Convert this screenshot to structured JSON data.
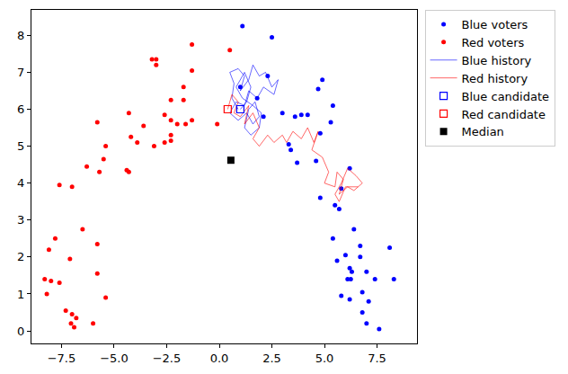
{
  "chart_data": {
    "type": "scatter",
    "grid": false,
    "legend": "right",
    "xlim": [
      -8.93,
      9.4
    ],
    "ylim": [
      -0.34,
      8.69
    ],
    "xticks": [
      {
        "value": -7.5,
        "label": "−7.5"
      },
      {
        "value": -5.0,
        "label": "−5.0"
      },
      {
        "value": -2.5,
        "label": "−2.5"
      },
      {
        "value": 0.0,
        "label": "0.0"
      },
      {
        "value": 2.5,
        "label": "2.5"
      },
      {
        "value": 5.0,
        "label": "5.0"
      },
      {
        "value": 7.5,
        "label": "7.5"
      }
    ],
    "yticks": [
      0,
      1,
      2,
      3,
      4,
      5,
      6,
      7,
      8
    ],
    "series": [
      {
        "name": "Blue voters",
        "type": "scatter",
        "marker": "circle",
        "color": "#0000ff",
        "x": [
          1.1,
          2.5,
          2.3,
          4.7,
          4.9,
          5.3,
          5.4,
          3.0,
          3.6,
          3.9,
          4.2,
          4.8,
          3.3,
          3.4,
          3.7,
          4.6,
          6.2,
          4.8,
          5.5,
          5.7,
          5.8,
          6.4,
          5.4,
          6.7,
          6.0,
          6.7,
          8.1,
          5.6,
          6.2,
          6.3,
          7.0,
          8.3,
          6.1,
          6.25,
          7.4,
          6.8,
          5.8,
          6.2,
          7.1,
          6.8,
          7.0,
          7.6,
          1.0,
          1.8,
          2.1
        ],
        "y": [
          8.25,
          7.95,
          6.9,
          6.55,
          6.8,
          5.65,
          6.1,
          5.9,
          5.8,
          5.85,
          5.85,
          5.35,
          5.05,
          4.9,
          4.55,
          4.6,
          4.4,
          3.6,
          3.4,
          3.3,
          3.85,
          2.75,
          2.5,
          2.3,
          2.05,
          2.0,
          2.25,
          1.9,
          1.7,
          1.6,
          1.6,
          1.4,
          1.4,
          1.4,
          1.4,
          1.05,
          0.95,
          0.85,
          0.8,
          0.5,
          0.2,
          0.05,
          6.6,
          6.3,
          5.8
        ]
      },
      {
        "name": "Red voters",
        "type": "scatter",
        "marker": "circle",
        "color": "#ff0000",
        "x": [
          -3.2,
          -3.0,
          -3.0,
          -1.3,
          -1.3,
          -1.7,
          -2.3,
          -1.7,
          -2.6,
          -4.3,
          -2.3,
          -2.0,
          -1.6,
          -1.3,
          -5.8,
          -3.6,
          -4.2,
          -2.3,
          -2.3,
          -3.9,
          -2.6,
          -3.1,
          -5.4,
          -5.5,
          -4.4,
          -4.3,
          -5.7,
          -6.3,
          -7.6,
          -7.0,
          -6.5,
          -7.8,
          -8.1,
          -7.1,
          -5.8,
          -5.8,
          -8.3,
          -8.0,
          -7.6,
          -8.2,
          -5.4,
          -7.3,
          -7.0,
          -6.8,
          -7.05,
          -6.9,
          -6.0,
          -0.1,
          0.5
        ],
        "y": [
          7.35,
          7.35,
          7.2,
          7.75,
          7.05,
          6.6,
          6.25,
          6.25,
          5.85,
          5.9,
          5.7,
          5.6,
          5.6,
          5.7,
          5.65,
          5.55,
          5.25,
          5.3,
          5.15,
          5.1,
          5.1,
          5.0,
          5.0,
          4.65,
          4.35,
          4.3,
          4.3,
          4.45,
          3.95,
          3.9,
          2.75,
          2.5,
          2.2,
          1.95,
          2.35,
          1.55,
          1.4,
          1.35,
          1.3,
          1.0,
          0.9,
          0.55,
          0.45,
          0.35,
          0.2,
          0.1,
          0.2,
          5.6,
          7.6
        ]
      },
      {
        "name": "Blue history",
        "type": "line",
        "line_style": "solid",
        "color": "#0000ff",
        "x": [
          0.9,
          0.6,
          0.7,
          0.5,
          0.9,
          1.2,
          1.0,
          1.4,
          1.6,
          1.9,
          2.2,
          2.5,
          2.8,
          2.6,
          2.1,
          1.8,
          1.4,
          1.2,
          0.8,
          0.5,
          0.9,
          1.3,
          1.6,
          1.9,
          1.7,
          1.4,
          1.2,
          1.5,
          1.9,
          2.0,
          1.6,
          1.1,
          0.8,
          1.2,
          1.5,
          1.3,
          1.0
        ],
        "y": [
          6.0,
          6.3,
          6.7,
          7.0,
          7.1,
          6.9,
          6.5,
          6.8,
          7.2,
          6.9,
          7.0,
          6.6,
          6.8,
          6.4,
          6.6,
          6.3,
          6.5,
          6.1,
          6.2,
          5.9,
          5.7,
          5.9,
          5.6,
          5.8,
          6.2,
          6.0,
          5.5,
          5.3,
          5.5,
          5.9,
          6.1,
          6.3,
          6.6,
          7.0,
          6.6,
          6.2,
          6.0
        ]
      },
      {
        "name": "Red history",
        "type": "line",
        "line_style": "solid",
        "color": "#ff0000",
        "x": [
          0.4,
          0.6,
          0.9,
          0.7,
          1.0,
          1.4,
          1.2,
          1.6,
          1.9,
          1.6,
          1.9,
          2.3,
          2.6,
          3.0,
          3.2,
          3.5,
          3.9,
          4.2,
          4.5,
          4.7,
          4.4,
          4.9,
          5.2,
          5.0,
          5.5,
          5.6,
          5.9,
          5.7,
          6.1,
          6.4,
          6.8,
          6.5,
          6.1,
          5.8,
          5.5,
          5.7,
          6.0,
          6.6
        ],
        "y": [
          6.0,
          6.4,
          6.2,
          5.9,
          5.8,
          6.1,
          5.6,
          5.9,
          5.5,
          5.2,
          5.0,
          5.3,
          5.1,
          5.3,
          5.1,
          5.4,
          5.2,
          5.5,
          5.1,
          5.4,
          4.9,
          4.7,
          4.3,
          4.0,
          3.9,
          4.3,
          4.1,
          3.7,
          3.9,
          3.8,
          4.0,
          4.2,
          4.4,
          4.0,
          3.7,
          3.5,
          3.9,
          3.9
        ]
      },
      {
        "name": "Blue candidate",
        "type": "scatter",
        "marker": "square-open",
        "color": "#0000ff",
        "x": [
          1.0
        ],
        "y": [
          6.0
        ]
      },
      {
        "name": "Red candidate",
        "type": "scatter",
        "marker": "square-open",
        "color": "#ff0000",
        "x": [
          0.4
        ],
        "y": [
          6.0
        ]
      },
      {
        "name": "Median",
        "type": "scatter",
        "marker": "square",
        "color": "#000000",
        "x": [
          0.55
        ],
        "y": [
          4.62
        ]
      }
    ]
  }
}
